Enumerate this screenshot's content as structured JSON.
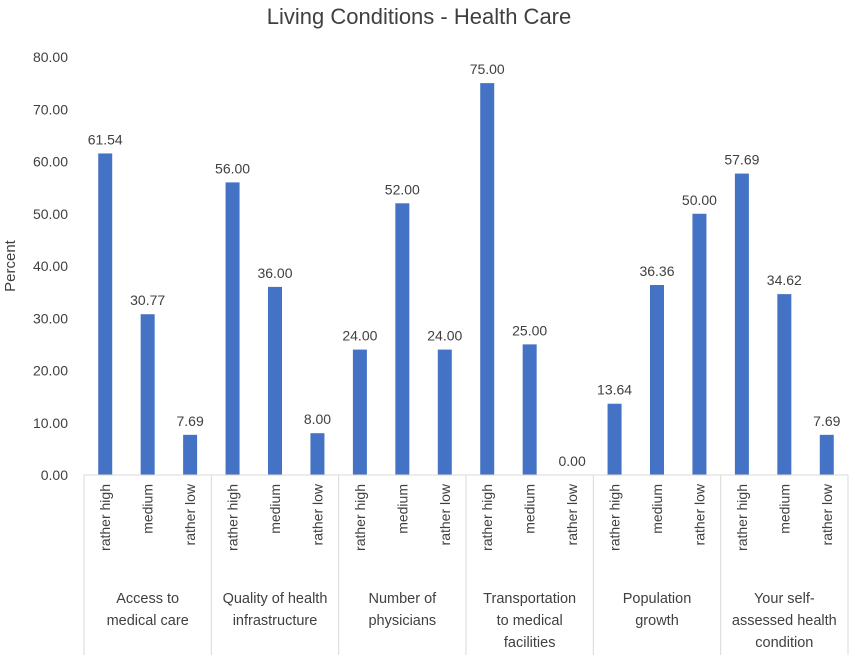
{
  "chart_data": {
    "type": "bar",
    "title": "Living Conditions - Health Care",
    "ylabel": "Percent",
    "xlabel": "",
    "ylim": [
      0,
      80
    ],
    "yticks": [
      "0.00",
      "10.00",
      "20.00",
      "30.00",
      "40.00",
      "50.00",
      "60.00",
      "70.00",
      "80.00"
    ],
    "grid": false,
    "legend": "none",
    "bar_color": "#4472C4",
    "groups": [
      {
        "label_lines": [
          "Access to",
          "medical care"
        ],
        "bars": [
          {
            "category": "rather high",
            "value": 61.54,
            "label": "61.54"
          },
          {
            "category": "medium",
            "value": 30.77,
            "label": "30.77"
          },
          {
            "category": "rather low",
            "value": 7.69,
            "label": "7.69"
          }
        ]
      },
      {
        "label_lines": [
          "Quality of health",
          "infrastructure"
        ],
        "bars": [
          {
            "category": "rather high",
            "value": 56.0,
            "label": "56.00"
          },
          {
            "category": "medium",
            "value": 36.0,
            "label": "36.00"
          },
          {
            "category": "rather low",
            "value": 8.0,
            "label": "8.00"
          }
        ]
      },
      {
        "label_lines": [
          "Number of",
          "physicians"
        ],
        "bars": [
          {
            "category": "rather high",
            "value": 24.0,
            "label": "24.00"
          },
          {
            "category": "medium",
            "value": 52.0,
            "label": "52.00"
          },
          {
            "category": "rather low",
            "value": 24.0,
            "label": "24.00"
          }
        ]
      },
      {
        "label_lines": [
          "Transportation",
          "to medical",
          "facilities"
        ],
        "bars": [
          {
            "category": "rather high",
            "value": 75.0,
            "label": "75.00"
          },
          {
            "category": "medium",
            "value": 25.0,
            "label": "25.00"
          },
          {
            "category": "rather low",
            "value": 0.0,
            "label": "0.00"
          }
        ]
      },
      {
        "label_lines": [
          "Population",
          "growth"
        ],
        "bars": [
          {
            "category": "rather high",
            "value": 13.64,
            "label": "13.64"
          },
          {
            "category": "medium",
            "value": 36.36,
            "label": "36.36"
          },
          {
            "category": "rather low",
            "value": 50.0,
            "label": "50.00"
          }
        ]
      },
      {
        "label_lines": [
          "Your self-",
          "assessed health",
          "condition"
        ],
        "bars": [
          {
            "category": "rather high",
            "value": 57.69,
            "label": "57.69"
          },
          {
            "category": "medium",
            "value": 34.62,
            "label": "34.62"
          },
          {
            "category": "rather low",
            "value": 7.69,
            "label": "7.69"
          }
        ]
      }
    ]
  }
}
